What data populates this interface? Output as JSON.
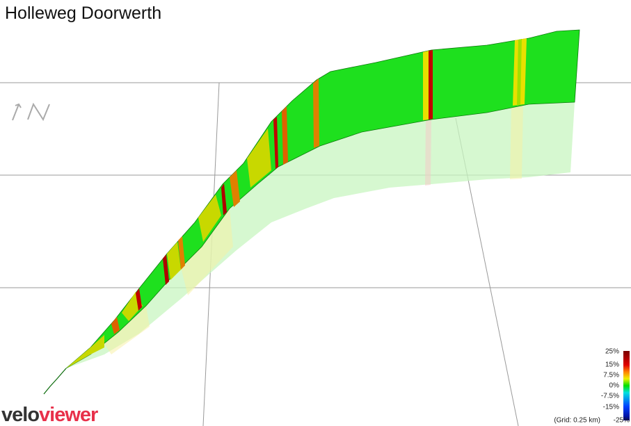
{
  "title": "Holleweg Doorwerth",
  "legend": {
    "labels": [
      "25%",
      "15%",
      "7.5%",
      "0%",
      "-7.5%",
      "-15%",
      "-25%"
    ],
    "grid_note": "(Grid: 0.25 km)"
  },
  "logo": {
    "part1": "velo",
    "part2": "viewer"
  }
}
